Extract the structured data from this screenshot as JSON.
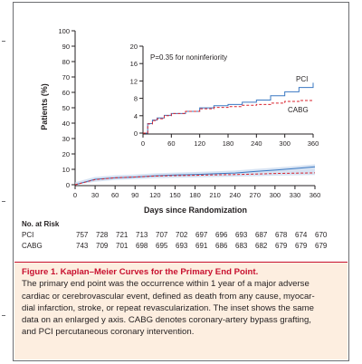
{
  "figure": {
    "label": "Figure 1.",
    "title": "Kaplan–Meier Curves for the Primary End Point.",
    "caption_lines": [
      "The primary end point was the occurrence within 1 year of a major adverse",
      "cardiac or cerebrovascular event, defined as death from any cause, myocar-",
      "dial infarction, stroke, or repeat revascularization. The inset shows the same",
      "data on an enlarged y axis. CABG denotes coronary-artery bypass grafting,",
      "and PCI percutaneous coronary intervention."
    ]
  },
  "chart_data": [
    {
      "type": "line",
      "role": "main",
      "ylabel": "Patients (%)",
      "xlabel": "Days since Randomization",
      "xlim": [
        0,
        360
      ],
      "ylim": [
        0,
        100
      ],
      "x_ticks": [
        0,
        30,
        60,
        90,
        120,
        150,
        180,
        210,
        240,
        270,
        300,
        330,
        360
      ],
      "y_ticks": [
        0,
        10,
        20,
        30,
        40,
        50,
        60,
        70,
        80,
        90,
        100
      ],
      "grid": false,
      "series": [
        {
          "name": "PCI",
          "color": "#3a78c2",
          "style": "solid",
          "x": [
            0,
            30,
            60,
            90,
            120,
            150,
            180,
            210,
            240,
            270,
            300,
            330,
            360
          ],
          "y": [
            0,
            3.5,
            4.5,
            5.0,
            5.8,
            6.3,
            6.6,
            7.1,
            7.6,
            8.6,
            9.5,
            10.5,
            11.6
          ]
        },
        {
          "name": "CABG",
          "color": "#d9232e",
          "style": "dashed",
          "x": [
            0,
            30,
            60,
            90,
            120,
            150,
            180,
            210,
            240,
            270,
            300,
            330,
            360
          ],
          "y": [
            0,
            3.3,
            4.5,
            5.0,
            5.6,
            5.9,
            6.1,
            6.4,
            6.6,
            6.9,
            7.3,
            7.5,
            7.7
          ]
        }
      ]
    },
    {
      "type": "line",
      "role": "inset",
      "annotation": "P=0.35 for noninferiority",
      "xlim": [
        0,
        360
      ],
      "ylim": [
        0,
        20
      ],
      "x_ticks": [
        0,
        60,
        120,
        180,
        240,
        300,
        360
      ],
      "y_ticks": [
        0,
        4,
        8,
        12,
        16,
        20
      ],
      "grid": false,
      "series": [
        {
          "name": "PCI",
          "color": "#3a78c2",
          "style": "solid",
          "x": [
            0,
            10,
            20,
            30,
            45,
            60,
            90,
            120,
            150,
            180,
            210,
            240,
            270,
            300,
            330,
            360
          ],
          "y": [
            0,
            2.2,
            3.0,
            3.5,
            4.1,
            4.5,
            5.0,
            5.8,
            6.3,
            6.6,
            7.1,
            7.6,
            8.6,
            9.5,
            10.5,
            11.6
          ]
        },
        {
          "name": "CABG",
          "color": "#d9232e",
          "style": "dashed",
          "x": [
            0,
            10,
            20,
            30,
            45,
            60,
            90,
            120,
            150,
            180,
            210,
            240,
            270,
            300,
            330,
            360
          ],
          "y": [
            0,
            2.1,
            2.9,
            3.3,
            4.0,
            4.5,
            5.0,
            5.6,
            5.9,
            6.1,
            6.4,
            6.6,
            6.9,
            7.3,
            7.5,
            7.7
          ]
        }
      ]
    }
  ],
  "at_risk": {
    "header": "No. at Risk",
    "rows": [
      {
        "label": "PCI",
        "values": [
          "757",
          "728",
          "721",
          "713",
          "707",
          "702",
          "697",
          "696",
          "693",
          "687",
          "678",
          "674",
          "670"
        ]
      },
      {
        "label": "CABG",
        "values": [
          "743",
          "709",
          "701",
          "698",
          "695",
          "693",
          "691",
          "686",
          "683",
          "682",
          "679",
          "679",
          "679"
        ]
      }
    ]
  }
}
